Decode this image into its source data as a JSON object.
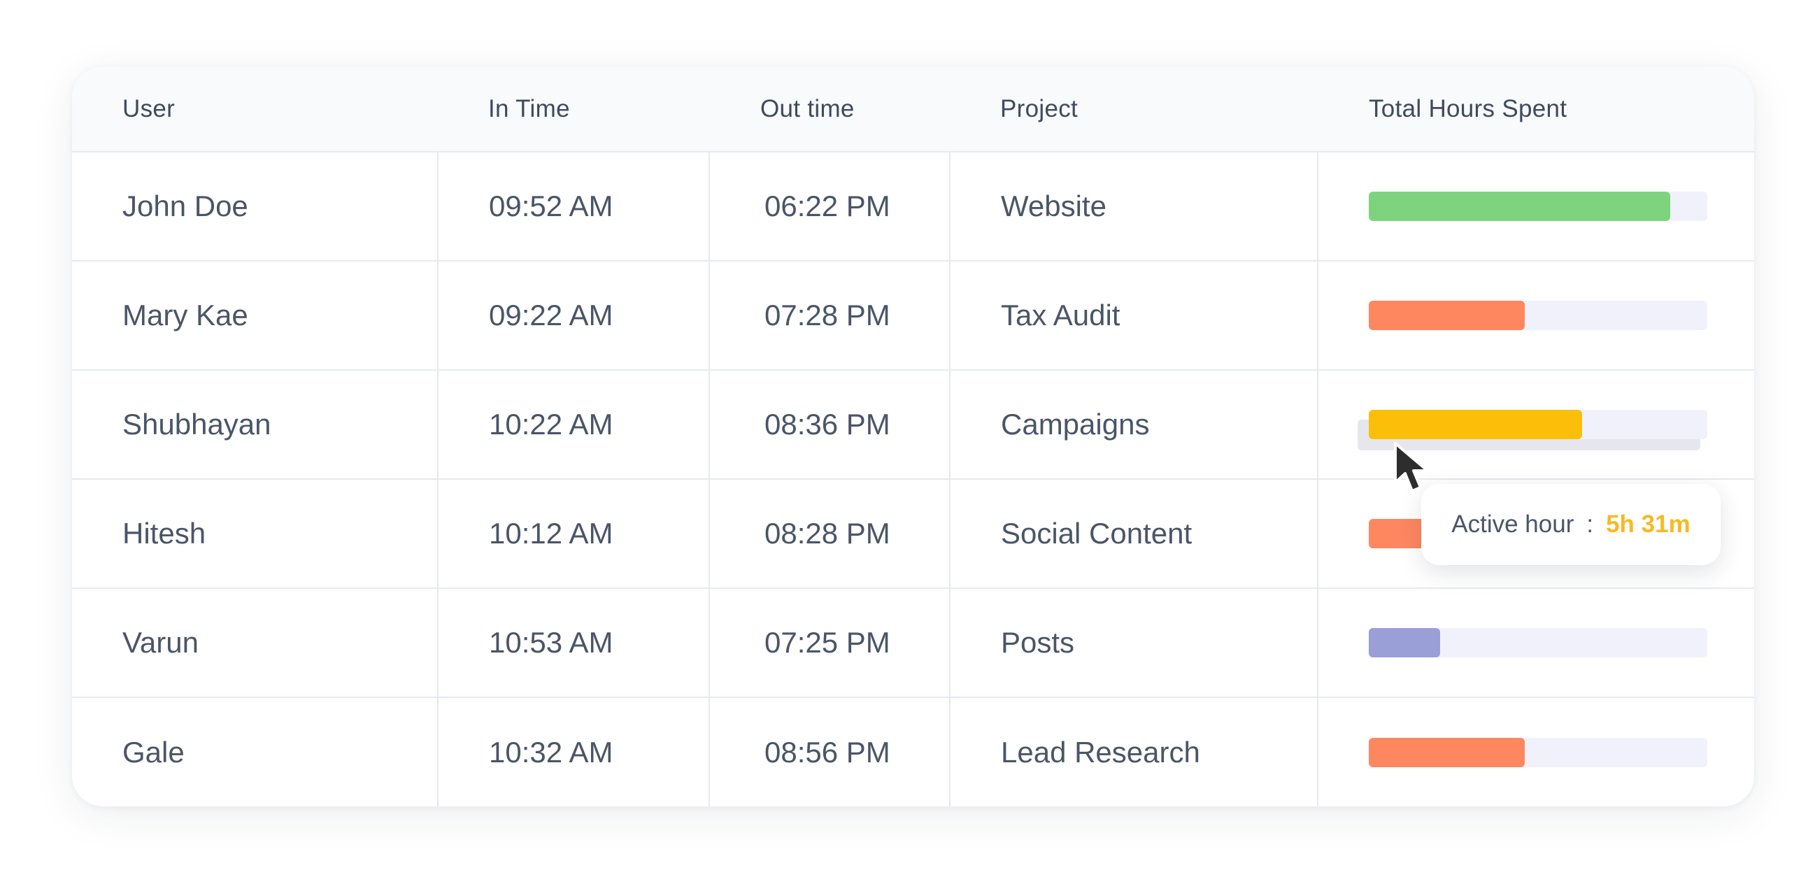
{
  "table": {
    "headers": {
      "user": "User",
      "in_time": "In Time",
      "out_time": "Out time",
      "project": "Project",
      "total_hours": "Total Hours Spent"
    },
    "rows": [
      {
        "user": "John Doe",
        "in_time": "09:52 AM",
        "out_time": "06:22 PM",
        "project": "Website",
        "progress": 0.89,
        "bar_color": "#7ed47e"
      },
      {
        "user": "Mary Kae",
        "in_time": "09:22 AM",
        "out_time": "07:28 PM",
        "project": "Tax Audit",
        "progress": 0.46,
        "bar_color": "#fe8760"
      },
      {
        "user": "Shubhayan",
        "in_time": "10:22 AM",
        "out_time": "08:36 PM",
        "project": "Campaigns",
        "progress": 0.63,
        "bar_color": "#fbbf09"
      },
      {
        "user": "Hitesh",
        "in_time": "10:12 AM",
        "out_time": "08:28 PM",
        "project": "Social Content",
        "progress": 0.46,
        "bar_color": "#fe8760"
      },
      {
        "user": "Varun",
        "in_time": "10:53 AM",
        "out_time": "07:25 PM",
        "project": "Posts",
        "progress": 0.21,
        "bar_color": "#9a9fd8"
      },
      {
        "user": "Gale",
        "in_time": "10:32 AM",
        "out_time": "08:56 PM",
        "project": "Lead Research",
        "progress": 0.46,
        "bar_color": "#fe8760"
      }
    ]
  },
  "tooltip": {
    "label": "Active hour",
    "separator": ":",
    "value": "5h 31m"
  },
  "colors": {
    "track": "#f0f1fb",
    "header_bg": "#f8fafc",
    "tooltip_value": "#f7b924"
  },
  "icons": {
    "cursor": "mouse-pointer-icon"
  }
}
